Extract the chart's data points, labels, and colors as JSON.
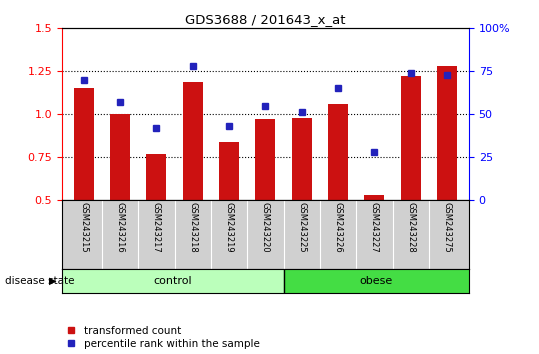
{
  "title": "GDS3688 / 201643_x_at",
  "samples": [
    "GSM243215",
    "GSM243216",
    "GSM243217",
    "GSM243218",
    "GSM243219",
    "GSM243220",
    "GSM243225",
    "GSM243226",
    "GSM243227",
    "GSM243228",
    "GSM243275"
  ],
  "transformed_count": [
    1.15,
    1.0,
    0.77,
    1.19,
    0.84,
    0.97,
    0.98,
    1.06,
    0.53,
    1.22,
    1.28
  ],
  "percentile_rank": [
    70,
    57,
    42,
    78,
    43,
    55,
    51,
    65,
    28,
    74,
    73
  ],
  "n_control": 6,
  "ylim_left": [
    0.5,
    1.5
  ],
  "ylim_right": [
    0,
    100
  ],
  "yticks_left": [
    0.5,
    0.75,
    1.0,
    1.25,
    1.5
  ],
  "yticks_right": [
    0,
    25,
    50,
    75,
    100
  ],
  "ytick_right_labels": [
    "0",
    "25",
    "50",
    "75",
    "100%"
  ],
  "bar_color": "#cc1111",
  "dot_color": "#2222bb",
  "control_color": "#bbffbb",
  "obese_color": "#44dd44",
  "label_bar": "transformed count",
  "label_dot": "percentile rank within the sample",
  "group_label_control": "control",
  "group_label_obese": "obese",
  "disease_state_label": "disease state"
}
